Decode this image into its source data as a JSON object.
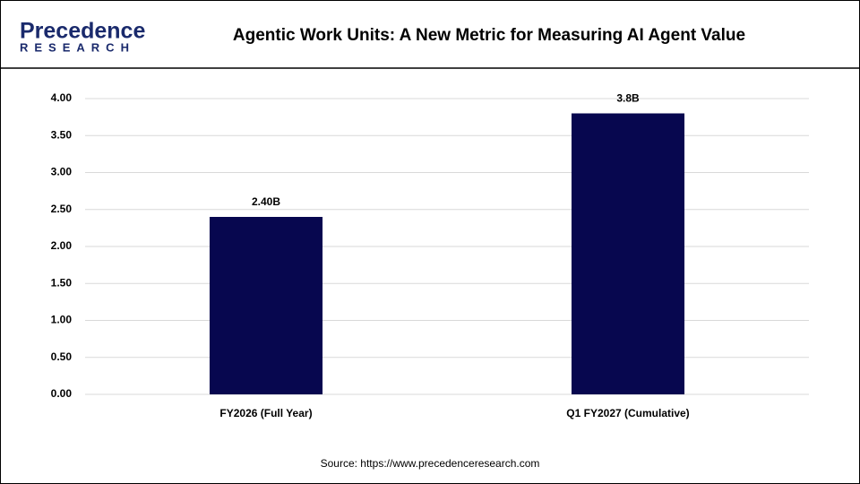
{
  "logo": {
    "name": "Precedence",
    "subtitle": "RESEARCH"
  },
  "chart_data": {
    "type": "bar",
    "title": "Agentic Work Units: A New Metric for Measuring AI Agent Value",
    "categories": [
      "FY2026 (Full Year)",
      "Q1 FY2027 (Cumulative)"
    ],
    "values": [
      2.4,
      3.8
    ],
    "value_labels": [
      "2.40B",
      "3.8B"
    ],
    "color": "#07074f",
    "ylim": [
      0,
      4
    ],
    "yticks": [
      {
        "value": 0,
        "label": "0.00"
      },
      {
        "value": 0.5,
        "label": "0.50"
      },
      {
        "value": 1,
        "label": "1.00"
      },
      {
        "value": 1.5,
        "label": "1.50"
      },
      {
        "value": 2,
        "label": "2.00"
      },
      {
        "value": 2.5,
        "label": "2.50"
      },
      {
        "value": 3,
        "label": "3.00"
      },
      {
        "value": 3.5,
        "label": "3.50"
      },
      {
        "value": 4,
        "label": "4.00"
      }
    ],
    "grid": true,
    "source": "Source: https://www.precedenceresearch.com"
  }
}
